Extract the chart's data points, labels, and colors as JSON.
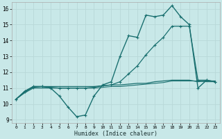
{
  "xlabel": "Humidex (Indice chaleur)",
  "background_color": "#c8e8e8",
  "grid_color": "#b8d8d8",
  "line_color": "#1a7070",
  "xlim": [
    -0.5,
    23.5
  ],
  "ylim": [
    8.8,
    16.4
  ],
  "yticks": [
    9,
    10,
    11,
    12,
    13,
    14,
    15,
    16
  ],
  "xticks": [
    0,
    1,
    2,
    3,
    4,
    5,
    6,
    7,
    8,
    9,
    10,
    11,
    12,
    13,
    14,
    15,
    16,
    17,
    18,
    19,
    20,
    21,
    22,
    23
  ],
  "series": [
    {
      "x": [
        0,
        1,
        2,
        3,
        4,
        5,
        6,
        7,
        8,
        9,
        10,
        11,
        12,
        13,
        14,
        15,
        16,
        17,
        18,
        19,
        20,
        21,
        22,
        23
      ],
      "y": [
        10.3,
        10.8,
        11.1,
        11.1,
        11.0,
        10.5,
        9.8,
        9.2,
        9.3,
        10.5,
        11.2,
        11.4,
        13.0,
        14.3,
        14.2,
        15.6,
        15.5,
        15.6,
        16.2,
        15.5,
        15.0,
        11.0,
        11.5,
        11.4
      ],
      "linewidth": 1.0,
      "marker": "+",
      "markersize": 3.5
    },
    {
      "x": [
        0,
        1,
        2,
        3,
        4,
        5,
        6,
        7,
        8,
        9,
        10,
        11,
        12,
        13,
        14,
        15,
        16,
        17,
        18,
        19,
        20,
        21,
        22,
        23
      ],
      "y": [
        10.3,
        10.8,
        11.1,
        11.1,
        11.1,
        11.1,
        11.1,
        11.1,
        11.1,
        11.1,
        11.15,
        11.2,
        11.2,
        11.25,
        11.3,
        11.3,
        11.4,
        11.45,
        11.5,
        11.5,
        11.5,
        11.4,
        11.45,
        11.45
      ],
      "linewidth": 0.9,
      "marker": null,
      "markersize": 0
    },
    {
      "x": [
        0,
        1,
        2,
        3,
        4,
        5,
        6,
        7,
        8,
        9,
        10,
        11,
        12,
        13,
        14,
        15,
        16,
        17,
        18,
        19,
        20,
        21,
        22,
        23
      ],
      "y": [
        10.3,
        10.75,
        11.05,
        11.1,
        11.05,
        11.0,
        11.0,
        11.0,
        11.0,
        11.05,
        11.15,
        11.2,
        11.4,
        11.9,
        12.4,
        13.1,
        13.7,
        14.2,
        14.9,
        14.9,
        14.9,
        11.5,
        11.5,
        11.4
      ],
      "linewidth": 0.9,
      "marker": "+",
      "markersize": 3.5
    },
    {
      "x": [
        0,
        1,
        2,
        3,
        4,
        5,
        6,
        7,
        8,
        9,
        10,
        11,
        12,
        13,
        14,
        15,
        16,
        17,
        18,
        19,
        20,
        21,
        22,
        23
      ],
      "y": [
        10.3,
        10.7,
        11.0,
        11.0,
        11.0,
        11.0,
        11.0,
        11.0,
        11.0,
        11.0,
        11.05,
        11.1,
        11.1,
        11.15,
        11.2,
        11.25,
        11.3,
        11.35,
        11.45,
        11.45,
        11.45,
        11.45,
        11.4,
        11.4
      ],
      "linewidth": 0.8,
      "marker": null,
      "markersize": 0
    }
  ]
}
